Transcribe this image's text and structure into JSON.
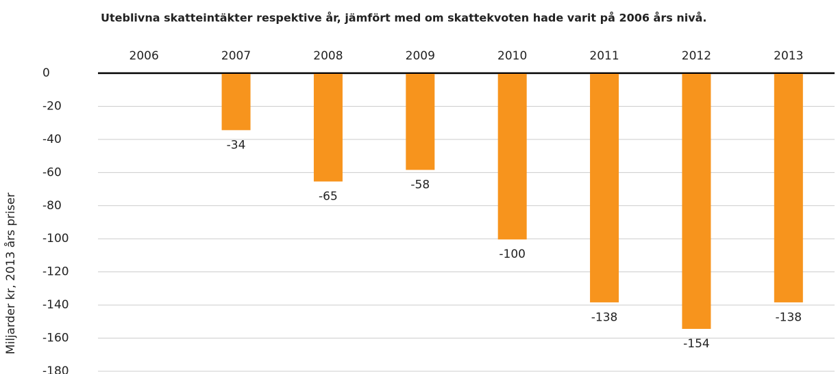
{
  "chart_data": {
    "type": "bar",
    "title": "Uteblivna skatteintäkter respektive år, jämfört med om skattekvoten hade varit på 2006 års nivå.",
    "y_label": "Miljarder kr, 2013 års priser",
    "categories": [
      "2006",
      "2007",
      "2008",
      "2009",
      "2010",
      "2011",
      "2012",
      "2013"
    ],
    "values": [
      null,
      -34,
      -65,
      -58,
      -100,
      -138,
      -154,
      -138
    ],
    "color": "#f7941d",
    "ylim": [
      -180,
      0
    ],
    "yticks": [
      0,
      -20,
      -40,
      -60,
      -80,
      -100,
      -120,
      -140,
      -160,
      -180
    ],
    "grid": true
  }
}
